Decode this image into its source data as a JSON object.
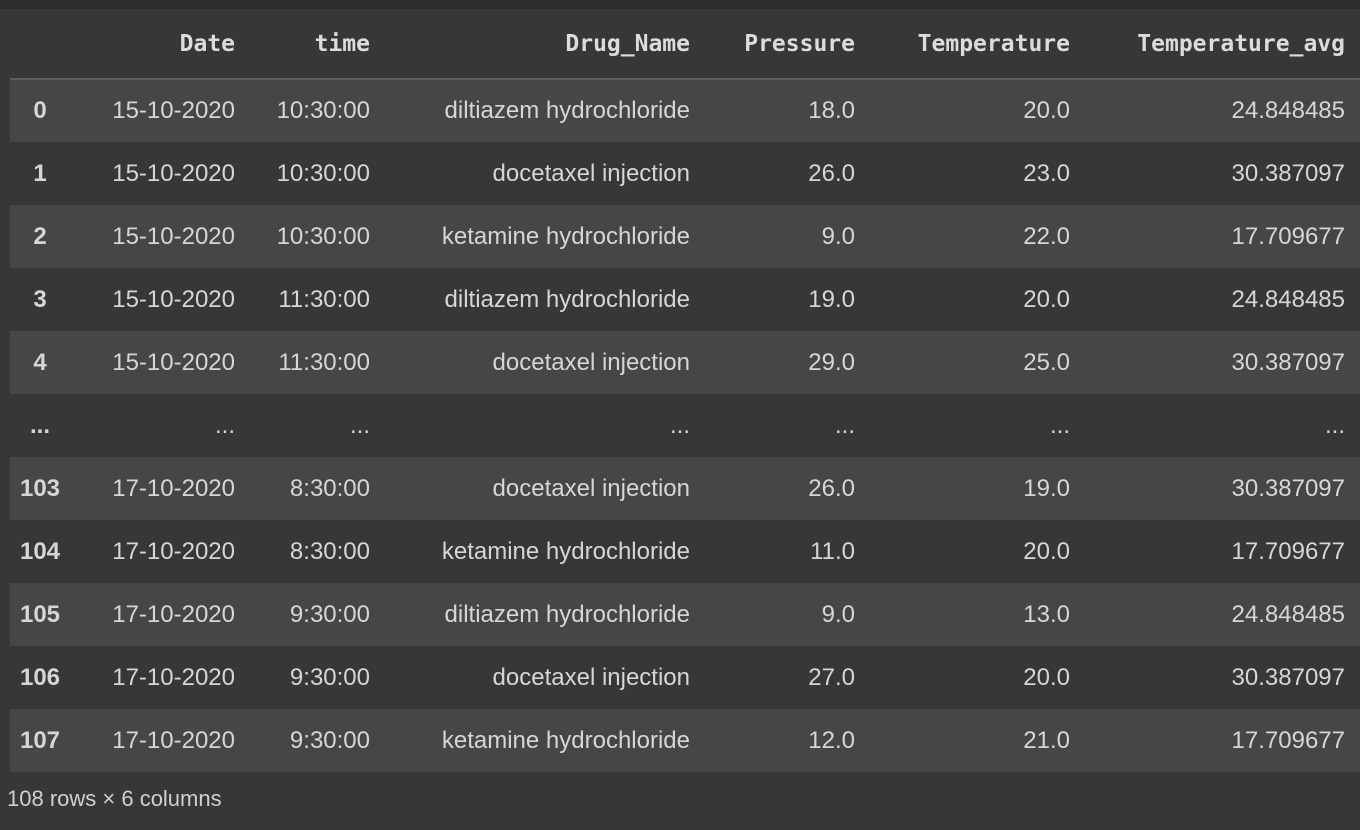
{
  "colors": {
    "background": "#373737",
    "top_strip": "#2c2c2c",
    "row_alt": "#464646",
    "header_separator": "#5d5d5d",
    "text": "#d6d6d6",
    "header_text": "#dcdcdc",
    "footer_text": "#d0d0d0"
  },
  "table": {
    "index_header": "",
    "columns": [
      "Date",
      "time",
      "Drug_Name",
      "Pressure",
      "Temperature",
      "Temperature_avg"
    ],
    "rows": [
      {
        "index": "0",
        "cells": [
          "15-10-2020",
          "10:30:00",
          "diltiazem hydrochloride",
          "18.0",
          "20.0",
          "24.848485"
        ]
      },
      {
        "index": "1",
        "cells": [
          "15-10-2020",
          "10:30:00",
          "docetaxel injection",
          "26.0",
          "23.0",
          "30.387097"
        ]
      },
      {
        "index": "2",
        "cells": [
          "15-10-2020",
          "10:30:00",
          "ketamine hydrochloride",
          "9.0",
          "22.0",
          "17.709677"
        ]
      },
      {
        "index": "3",
        "cells": [
          "15-10-2020",
          "11:30:00",
          "diltiazem hydrochloride",
          "19.0",
          "20.0",
          "24.848485"
        ]
      },
      {
        "index": "4",
        "cells": [
          "15-10-2020",
          "11:30:00",
          "docetaxel injection",
          "29.0",
          "25.0",
          "30.387097"
        ]
      },
      {
        "index": "...",
        "cells": [
          "...",
          "...",
          "...",
          "...",
          "...",
          "..."
        ]
      },
      {
        "index": "103",
        "cells": [
          "17-10-2020",
          "8:30:00",
          "docetaxel injection",
          "26.0",
          "19.0",
          "30.387097"
        ]
      },
      {
        "index": "104",
        "cells": [
          "17-10-2020",
          "8:30:00",
          "ketamine hydrochloride",
          "11.0",
          "20.0",
          "17.709677"
        ]
      },
      {
        "index": "105",
        "cells": [
          "17-10-2020",
          "9:30:00",
          "diltiazem hydrochloride",
          "9.0",
          "13.0",
          "24.848485"
        ]
      },
      {
        "index": "106",
        "cells": [
          "17-10-2020",
          "9:30:00",
          "docetaxel injection",
          "27.0",
          "20.0",
          "30.387097"
        ]
      },
      {
        "index": "107",
        "cells": [
          "17-10-2020",
          "9:30:00",
          "ketamine hydrochloride",
          "12.0",
          "21.0",
          "17.709677"
        ]
      }
    ],
    "footer_label": "108 rows × 6 columns"
  }
}
